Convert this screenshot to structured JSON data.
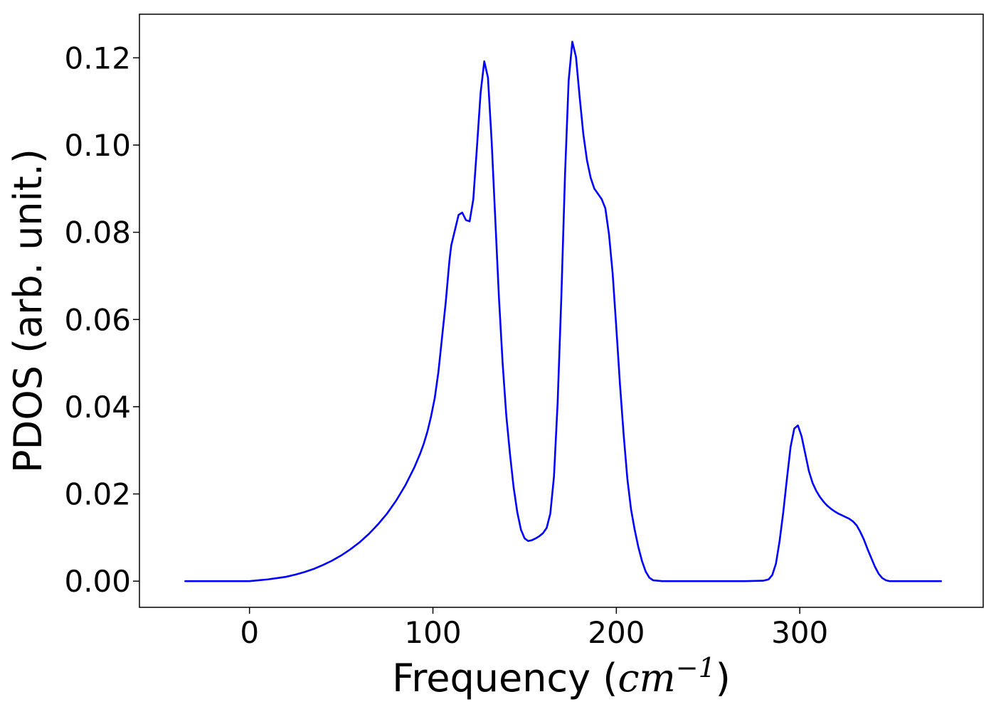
{
  "chart_data": {
    "type": "line",
    "title": "",
    "xlabel": {
      "prefix": "Frequency (",
      "math_base": "cm",
      "math_exp": "−1",
      "suffix": ")"
    },
    "ylabel": "PDOS (arb. unit.)",
    "xlim": [
      -60,
      400
    ],
    "ylim": [
      -0.006,
      0.13
    ],
    "xticks": [
      0,
      100,
      200,
      300
    ],
    "xtick_labels": [
      "0",
      "100",
      "200",
      "300"
    ],
    "yticks": [
      0.0,
      0.02,
      0.04,
      0.06,
      0.08,
      0.1,
      0.12
    ],
    "ytick_labels": [
      "0.00",
      "0.02",
      "0.04",
      "0.06",
      "0.08",
      "0.10",
      "0.12"
    ],
    "grid": false,
    "legend": "none",
    "series": [
      {
        "color": "#0000ff",
        "x": [
          -35,
          -20,
          -10,
          0,
          5,
          10,
          15,
          20,
          25,
          30,
          35,
          40,
          45,
          50,
          55,
          60,
          65,
          70,
          75,
          80,
          85,
          90,
          93,
          95,
          97,
          99,
          101,
          103,
          105,
          107,
          109,
          110,
          112,
          114,
          116,
          118,
          120,
          122,
          124,
          126,
          128,
          130,
          132,
          134,
          136,
          138,
          140,
          142,
          144,
          146,
          148,
          150,
          152,
          154,
          156,
          158,
          160,
          162,
          164,
          166,
          168,
          170,
          172,
          174,
          176,
          178,
          180,
          182,
          184,
          186,
          188,
          190,
          192,
          194,
          196,
          198,
          200,
          202,
          204,
          206,
          208,
          210,
          212,
          214,
          216,
          218,
          220,
          225,
          230,
          240,
          250,
          260,
          270,
          280,
          283,
          285,
          287,
          289,
          291,
          293,
          295,
          297,
          299,
          301,
          303,
          305,
          307,
          309,
          311,
          313,
          315,
          317,
          319,
          321,
          323,
          325,
          327,
          329,
          331,
          333,
          335,
          337,
          339,
          341,
          343,
          345,
          347,
          349,
          351,
          355,
          360,
          370,
          377
        ],
        "y": [
          0,
          0,
          0,
          0,
          0.0002,
          0.0004,
          0.0007,
          0.001,
          0.0015,
          0.0021,
          0.0028,
          0.0037,
          0.0047,
          0.0059,
          0.0073,
          0.0089,
          0.0108,
          0.013,
          0.0155,
          0.0185,
          0.022,
          0.0262,
          0.0292,
          0.0315,
          0.0343,
          0.0378,
          0.042,
          0.048,
          0.056,
          0.064,
          0.0735,
          0.077,
          0.0805,
          0.084,
          0.0845,
          0.0828,
          0.0825,
          0.0875,
          0.0995,
          0.112,
          0.1192,
          0.1155,
          0.101,
          0.083,
          0.065,
          0.05,
          0.038,
          0.0292,
          0.0215,
          0.0158,
          0.0118,
          0.0098,
          0.0092,
          0.0094,
          0.0098,
          0.0103,
          0.011,
          0.0122,
          0.0155,
          0.024,
          0.041,
          0.065,
          0.093,
          0.1148,
          0.1237,
          0.1202,
          0.111,
          0.1025,
          0.0965,
          0.0925,
          0.09,
          0.0888,
          0.0876,
          0.0855,
          0.0795,
          0.0705,
          0.058,
          0.045,
          0.0335,
          0.0235,
          0.0165,
          0.0118,
          0.0078,
          0.0046,
          0.0022,
          0.0008,
          0.0002,
          0,
          0,
          0,
          0,
          0,
          0,
          0.0001,
          0.0004,
          0.0014,
          0.004,
          0.0092,
          0.0158,
          0.0235,
          0.0308,
          0.035,
          0.0357,
          0.0332,
          0.0292,
          0.0252,
          0.0225,
          0.0207,
          0.0193,
          0.0182,
          0.0173,
          0.0166,
          0.016,
          0.0155,
          0.0151,
          0.0147,
          0.0143,
          0.0137,
          0.0128,
          0.0113,
          0.0095,
          0.0073,
          0.0053,
          0.0033,
          0.0017,
          0.0007,
          0.0002,
          0,
          0,
          0,
          0,
          0,
          0
        ]
      }
    ]
  }
}
